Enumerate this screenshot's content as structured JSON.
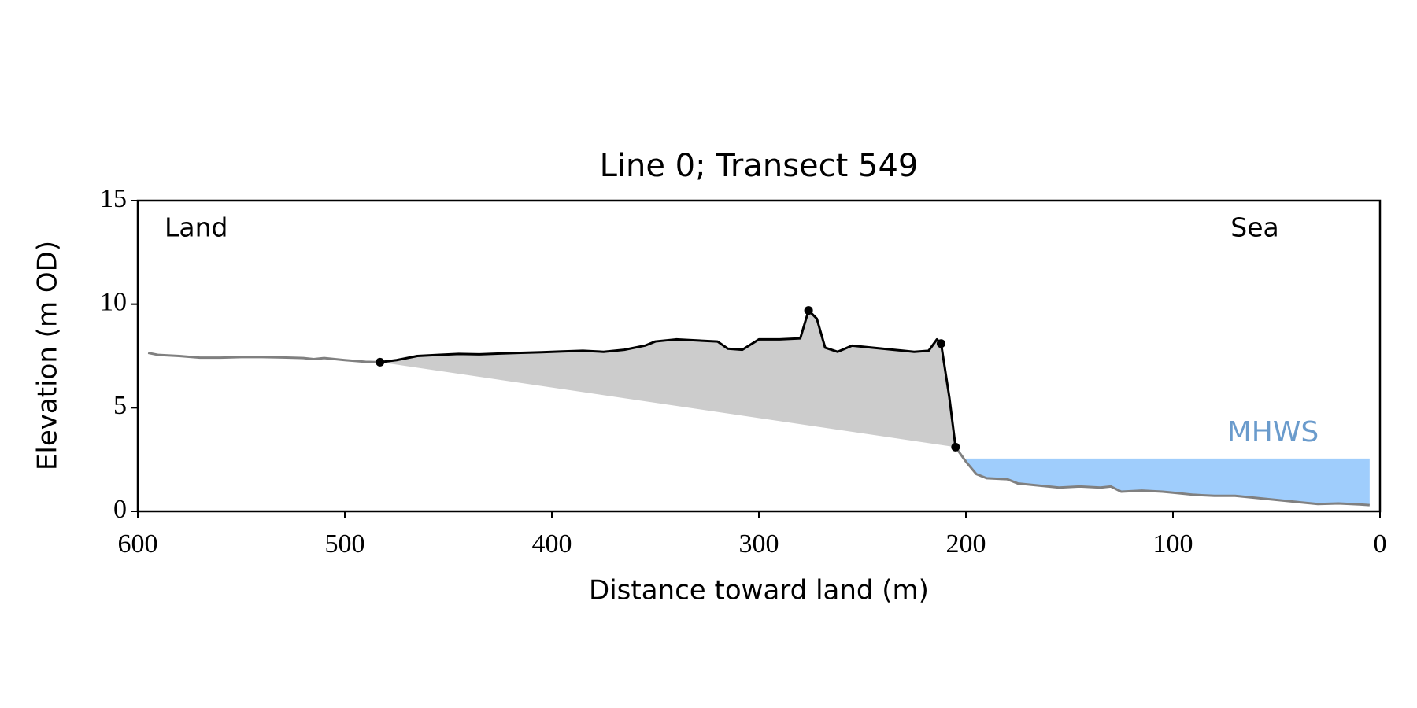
{
  "chart_data": {
    "type": "line",
    "title": "Line 0; Transect 549",
    "xlabel": "Distance toward land (m)",
    "ylabel": "Elevation (m OD)",
    "annotations": {
      "land": "Land",
      "sea": "Sea"
    },
    "xlim": [
      600,
      0
    ],
    "ylim": [
      0,
      15
    ],
    "xticks": [
      600,
      500,
      400,
      300,
      200,
      100,
      0
    ],
    "yticks": [
      0,
      5,
      10,
      15
    ],
    "x": [
      595,
      590,
      580,
      570,
      560,
      550,
      540,
      530,
      520,
      515,
      510,
      500,
      490,
      483,
      475,
      465,
      455,
      445,
      435,
      425,
      415,
      405,
      395,
      385,
      375,
      365,
      355,
      350,
      340,
      330,
      320,
      315,
      308,
      300,
      290,
      280,
      276,
      272,
      268,
      262,
      255,
      245,
      235,
      225,
      218,
      214,
      212,
      208,
      205,
      200,
      195,
      190,
      180,
      175,
      165,
      155,
      145,
      135,
      130,
      125,
      115,
      105,
      100,
      90,
      80,
      70,
      60,
      50,
      40,
      30,
      20,
      10,
      5
    ],
    "series": [
      {
        "color": "#808080",
        "values": [
          7.65,
          7.55,
          7.5,
          7.42,
          7.42,
          7.45,
          7.45,
          7.43,
          7.4,
          7.35,
          7.4,
          7.3,
          7.22,
          7.2,
          null,
          null,
          null,
          null,
          null,
          null,
          null,
          null,
          null,
          null,
          null,
          null,
          null,
          null,
          null,
          null,
          null,
          null,
          null,
          null,
          null,
          null,
          null,
          null,
          null,
          null,
          null,
          null,
          null,
          null,
          null,
          null,
          null,
          null,
          3.1,
          2.4,
          1.8,
          1.6,
          1.55,
          1.35,
          1.25,
          1.15,
          1.2,
          1.15,
          1.2,
          0.95,
          1.0,
          0.95,
          0.9,
          0.8,
          0.75,
          0.75,
          0.65,
          0.55,
          0.45,
          0.35,
          0.38,
          0.33,
          0.3
        ]
      },
      {
        "color": "#000000",
        "values": [
          null,
          null,
          null,
          null,
          null,
          null,
          null,
          null,
          null,
          null,
          null,
          null,
          null,
          7.2,
          7.3,
          7.5,
          7.55,
          7.6,
          7.58,
          7.62,
          7.65,
          7.68,
          7.72,
          7.75,
          7.7,
          7.8,
          8.0,
          8.2,
          8.3,
          8.25,
          8.2,
          7.85,
          7.8,
          8.3,
          8.3,
          8.35,
          9.7,
          9.3,
          7.9,
          7.7,
          8.0,
          7.9,
          7.8,
          7.7,
          7.75,
          8.3,
          8.1,
          5.5,
          3.1,
          null,
          null,
          null,
          null,
          null,
          null,
          null,
          null,
          null,
          null,
          null,
          null,
          null,
          null,
          null,
          null,
          null,
          null,
          null,
          null,
          null,
          null,
          null,
          null
        ]
      }
    ],
    "markers": {
      "color": "#000000",
      "x": [
        483,
        276,
        212,
        205
      ],
      "values": [
        7.2,
        9.7,
        8.1,
        3.1
      ]
    },
    "shade_color": "#cccccc",
    "mhws": {
      "label": "MHWS",
      "value": 2.55,
      "xrange": [
        200,
        5
      ],
      "color": "#9fcdfc",
      "label_color": "#6a9bcc"
    }
  }
}
